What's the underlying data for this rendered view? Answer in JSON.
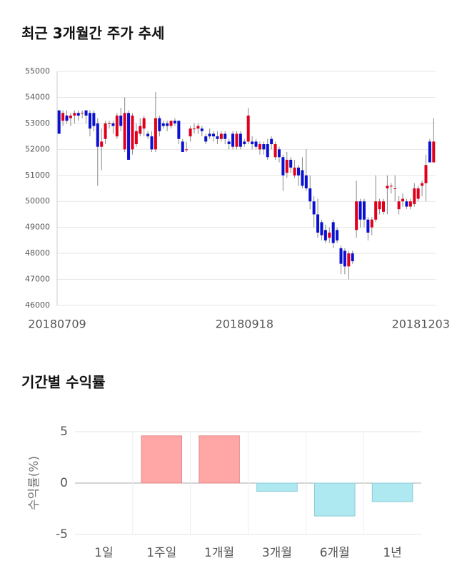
{
  "chart_data": [
    {
      "type": "candlestick",
      "title": "최근 3개월간 주가 추세",
      "categories": [
        "20180709",
        null,
        null,
        null,
        null,
        null,
        null,
        null,
        null,
        null,
        null,
        null,
        null,
        null,
        null,
        null,
        null,
        null,
        null,
        null,
        null,
        null,
        null,
        null,
        null,
        null,
        null,
        null,
        null,
        null,
        null,
        null,
        null,
        null,
        null,
        null,
        null,
        null,
        null,
        null,
        null,
        null,
        null,
        null,
        null,
        null,
        null,
        null,
        "20180918",
        null,
        null,
        null,
        null,
        null,
        null,
        null,
        null,
        null,
        null,
        null,
        null,
        null,
        null,
        null,
        null,
        null,
        null,
        null,
        null,
        null,
        null,
        null,
        null,
        null,
        null,
        null,
        null,
        null,
        null,
        null,
        null,
        null,
        null,
        null,
        null,
        null,
        null,
        null,
        null,
        null,
        null,
        null,
        null,
        null,
        null,
        null,
        null,
        "20181203"
      ],
      "open": [
        53500,
        53100,
        53300,
        53200,
        53300,
        53400,
        53400,
        53500,
        53400,
        53400,
        53000,
        52100,
        52400,
        53000,
        53000,
        52500,
        53300,
        52000,
        53400,
        52000,
        52200,
        52600,
        52800,
        52600,
        52500,
        52000,
        53200,
        53000,
        53000,
        52900,
        53100,
        53100,
        52300,
        52000,
        52500,
        52800,
        52800,
        52800,
        52500,
        52600,
        52600,
        52500,
        52400,
        52600,
        52300,
        52600,
        52100,
        52600,
        52300,
        52300,
        52300,
        52300,
        52000,
        52200,
        52200,
        52400,
        51700,
        52000,
        51700,
        51100,
        51600,
        51000,
        51300,
        51200,
        51000,
        50500,
        50000,
        49500,
        49200,
        48900,
        48600,
        49200,
        48900,
        48200,
        48100,
        47500,
        48000,
        48900,
        50000,
        50000,
        49300,
        49000,
        49300,
        49700,
        49600,
        50500,
        50600,
        50500,
        49700,
        50000,
        50000,
        49800,
        49900,
        50100,
        50600,
        50700,
        52300,
        51500
      ],
      "high": [
        53500,
        53500,
        53500,
        53400,
        53500,
        53500,
        53500,
        53500,
        53500,
        53500,
        53200,
        52800,
        53100,
        53100,
        53100,
        53400,
        53600,
        54000,
        53500,
        53400,
        53000,
        53200,
        53300,
        52700,
        52700,
        54200,
        53300,
        53100,
        53100,
        53100,
        53200,
        53100,
        52400,
        52300,
        52900,
        53000,
        53000,
        52900,
        52600,
        52800,
        52700,
        52700,
        52700,
        52700,
        52400,
        52700,
        52700,
        52700,
        52400,
        53600,
        52500,
        52400,
        52300,
        52300,
        52400,
        52500,
        52300,
        52100,
        51800,
        51900,
        51700,
        51600,
        51400,
        51700,
        52000,
        51000,
        50200,
        50100,
        49300,
        49100,
        49000,
        49300,
        49000,
        48300,
        48200,
        48100,
        48100,
        50800,
        50100,
        50100,
        49400,
        49400,
        51000,
        50100,
        50100,
        51000,
        50700,
        51000,
        50200,
        50300,
        50100,
        50100,
        50700,
        50600,
        50800,
        51800,
        52400,
        53200
      ],
      "low": [
        52600,
        52900,
        53000,
        52900,
        53000,
        53100,
        53200,
        53000,
        52500,
        52700,
        50600,
        51200,
        52200,
        52800,
        52600,
        52400,
        52700,
        51900,
        51600,
        51800,
        52100,
        52500,
        52500,
        52400,
        51900,
        51900,
        52500,
        52800,
        52700,
        52800,
        52900,
        52200,
        51900,
        51900,
        52300,
        52600,
        52600,
        52500,
        52200,
        52400,
        52300,
        52200,
        52300,
        52200,
        52000,
        52000,
        52000,
        52000,
        52100,
        52200,
        52000,
        52000,
        51800,
        51800,
        51600,
        52000,
        51600,
        51500,
        50400,
        50900,
        51100,
        50900,
        50600,
        50500,
        50400,
        49700,
        49000,
        48600,
        48500,
        48400,
        48400,
        48200,
        48400,
        47200,
        47200,
        47000,
        47600,
        48600,
        49000,
        49000,
        48500,
        48700,
        49200,
        49500,
        49500,
        49500,
        50300,
        50000,
        49500,
        49800,
        49700,
        49700,
        49800,
        50000,
        50200,
        50000,
        51500,
        51500
      ],
      "close": [
        52600,
        53400,
        53100,
        53300,
        53400,
        53300,
        53400,
        53300,
        52800,
        52900,
        52100,
        52300,
        53000,
        53000,
        52900,
        53300,
        52900,
        53400,
        51600,
        53300,
        52700,
        52900,
        53200,
        52500,
        52000,
        53200,
        52700,
        52900,
        52900,
        53100,
        53000,
        52400,
        51900,
        52000,
        52800,
        52800,
        52900,
        52700,
        52300,
        52500,
        52500,
        52400,
        52600,
        52400,
        52200,
        52100,
        52600,
        52100,
        52200,
        53300,
        52200,
        52100,
        52200,
        52000,
        51700,
        52200,
        52200,
        51700,
        51000,
        51600,
        51300,
        51300,
        51000,
        50600,
        50500,
        50000,
        49500,
        48800,
        48700,
        48500,
        48800,
        48400,
        48500,
        47600,
        47500,
        48000,
        47700,
        50000,
        49300,
        49300,
        48800,
        49300,
        50000,
        50000,
        50000,
        50600,
        50600,
        50500,
        50000,
        50100,
        49800,
        50000,
        50500,
        50500,
        50700,
        51400,
        51500,
        52300
      ],
      "up_color": "#e0001b",
      "down_color": "#0a10d0",
      "ylim": [
        46000,
        55000
      ],
      "yticks": [
        46000,
        47000,
        48000,
        49000,
        50000,
        51000,
        52000,
        53000,
        54000,
        55000
      ],
      "grid": true
    },
    {
      "type": "bar",
      "title": "기간별 수익률",
      "ylabel": "수익률(%)",
      "categories": [
        "1일",
        "1주일",
        "1개월",
        "3개월",
        "6개월",
        "1년"
      ],
      "values": [
        0,
        4.6,
        4.6,
        -0.8,
        -3.2,
        -1.8
      ],
      "positive_color": "#ffa7a7",
      "negative_color": "#aee9f2",
      "ylim": [
        -5,
        5
      ],
      "yticks": [
        -5,
        0,
        5
      ],
      "grid": true
    }
  ]
}
